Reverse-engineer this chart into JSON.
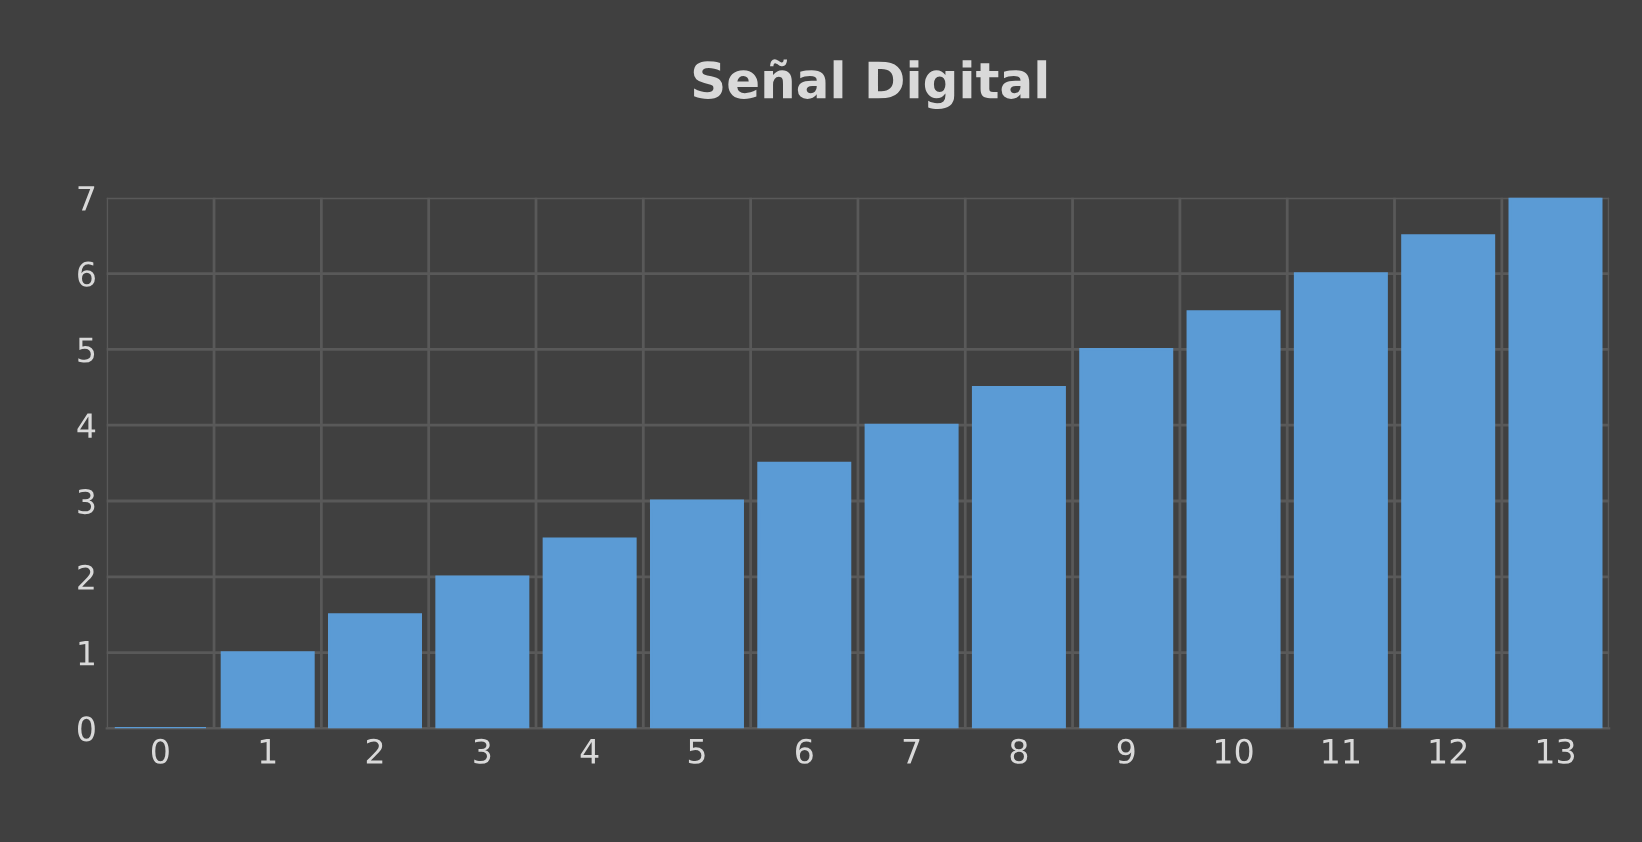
{
  "chart_data": {
    "type": "bar",
    "title": "Señal Digital",
    "categories": [
      "0",
      "1",
      "2",
      "3",
      "4",
      "5",
      "6",
      "7",
      "8",
      "9",
      "10",
      "11",
      "12",
      "13"
    ],
    "values": [
      0,
      1,
      1.5,
      2,
      2.5,
      3,
      3.5,
      4,
      4.5,
      5,
      5.5,
      6,
      6.5,
      7
    ],
    "color": "#5b9bd5",
    "ylim": [
      0,
      7
    ],
    "yticks": [
      0,
      1,
      2,
      3,
      4,
      5,
      6,
      7
    ],
    "grid": true
  }
}
